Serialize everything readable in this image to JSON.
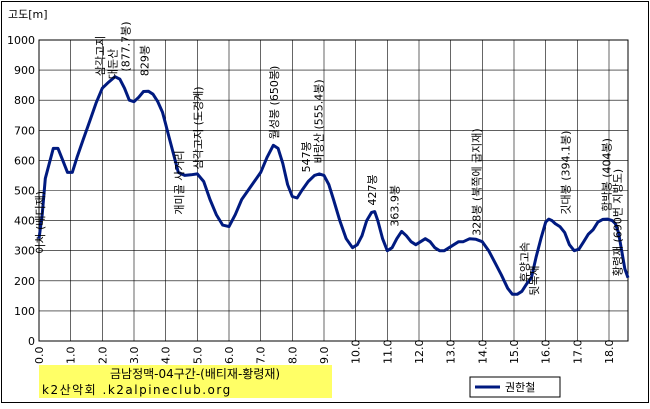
{
  "chart_data": {
    "type": "line",
    "ylabel": "고도[m]",
    "xlim": [
      0,
      18.6
    ],
    "ylim": [
      0,
      1000
    ],
    "yticks": [
      0,
      100,
      200,
      300,
      400,
      500,
      600,
      700,
      800,
      900,
      1000
    ],
    "xticks": [
      "0.0",
      "1.0",
      "2.0",
      "3.0",
      "4.0",
      "5.0",
      "6.0",
      "7.0",
      "8.0",
      "9.0",
      "10.0",
      "11.0",
      "12.0",
      "13.0",
      "14.0",
      "15.0",
      "16.0",
      "17.0",
      "18.0"
    ],
    "grid": true,
    "title_box": {
      "line1": "금남정맥-04구간-(배티재-황령재)",
      "line2": "k2산악회 .k2alpineclub.org",
      "color": "#ffff66"
    },
    "series": [
      {
        "name": "권한철",
        "color": "#001a80",
        "x": [
          0.0,
          0.1,
          0.2,
          0.3,
          0.45,
          0.6,
          0.75,
          0.9,
          1.05,
          1.2,
          1.4,
          1.6,
          1.8,
          2.0,
          2.2,
          2.4,
          2.55,
          2.7,
          2.85,
          3.0,
          3.15,
          3.3,
          3.45,
          3.6,
          3.75,
          3.9,
          4.0,
          4.1,
          4.25,
          4.4,
          4.6,
          4.8,
          5.0,
          5.2,
          5.4,
          5.6,
          5.8,
          6.0,
          6.2,
          6.4,
          6.6,
          6.8,
          7.0,
          7.2,
          7.4,
          7.55,
          7.7,
          7.85,
          8.0,
          8.15,
          8.3,
          8.5,
          8.7,
          8.85,
          9.0,
          9.15,
          9.3,
          9.5,
          9.7,
          9.9,
          10.05,
          10.2,
          10.35,
          10.5,
          10.6,
          10.7,
          10.85,
          11.0,
          11.15,
          11.3,
          11.45,
          11.6,
          11.75,
          11.9,
          12.05,
          12.2,
          12.35,
          12.5,
          12.65,
          12.8,
          12.95,
          13.1,
          13.25,
          13.4,
          13.6,
          13.8,
          14.0,
          14.2,
          14.4,
          14.6,
          14.8,
          14.95,
          15.1,
          15.25,
          15.4,
          15.55,
          15.7,
          15.85,
          16.0,
          16.1,
          16.2,
          16.3,
          16.45,
          16.6,
          16.75,
          16.9,
          17.05,
          17.2,
          17.35,
          17.5,
          17.65,
          17.8,
          17.95,
          18.1,
          18.2,
          18.3,
          18.4,
          18.5,
          18.6
        ],
        "y": [
          340,
          420,
          540,
          580,
          640,
          640,
          600,
          560,
          560,
          610,
          670,
          730,
          790,
          840,
          860,
          878,
          870,
          840,
          800,
          795,
          810,
          829,
          830,
          820,
          795,
          760,
          720,
          680,
          620,
          560,
          550,
          552,
          555,
          530,
          470,
          420,
          385,
          380,
          420,
          470,
          500,
          530,
          560,
          610,
          650,
          640,
          590,
          520,
          480,
          475,
          500,
          530,
          550,
          555,
          550,
          520,
          470,
          400,
          340,
          310,
          320,
          350,
          400,
          427,
          430,
          400,
          340,
          300,
          310,
          340,
          364,
          350,
          330,
          320,
          330,
          340,
          330,
          310,
          300,
          300,
          310,
          320,
          330,
          330,
          340,
          338,
          330,
          300,
          260,
          220,
          175,
          155,
          155,
          165,
          190,
          210,
          280,
          340,
          395,
          405,
          400,
          390,
          380,
          360,
          320,
          300,
          305,
          330,
          355,
          370,
          395,
          404,
          405,
          400,
          390,
          360,
          300,
          240,
          210
        ]
      }
    ],
    "annotations": [
      {
        "text": "이치 (배티재)",
        "x": 0.15,
        "y": 290
      },
      {
        "text": "삼각고지",
        "x": 2.05,
        "y": 880
      },
      {
        "text": "대둔산",
        "x": 2.45,
        "y": 870
      },
      {
        "text": "(877.7봉)",
        "x": 2.85,
        "y": 895
      },
      {
        "text": "829봉",
        "x": 3.45,
        "y": 880
      },
      {
        "text": "개미골 사거리",
        "x": 4.55,
        "y": 420
      },
      {
        "text": "삼각고지 (도경계)",
        "x": 5.15,
        "y": 570
      },
      {
        "text": "월성봉 (650봉)",
        "x": 7.55,
        "y": 670
      },
      {
        "text": "547봉",
        "x": 8.55,
        "y": 560
      },
      {
        "text": "바랑산 (555.4봉)",
        "x": 8.95,
        "y": 590
      },
      {
        "text": "427봉",
        "x": 10.65,
        "y": 450
      },
      {
        "text": "363.9봉",
        "x": 11.35,
        "y": 380
      },
      {
        "text": "328봉 (북쪽에 굽지재)",
        "x": 13.95,
        "y": 350
      },
      {
        "text": "휴양고속",
        "x": 15.45,
        "y": 195
      },
      {
        "text": "뒷목재",
        "x": 15.75,
        "y": 150
      },
      {
        "text": "깃대봉 (394.1봉)",
        "x": 16.75,
        "y": 420
      },
      {
        "text": "함박봉 (404봉)",
        "x": 18.05,
        "y": 430
      },
      {
        "text": "황령재 (690번 지방도)",
        "x": 18.4,
        "y": 215
      }
    ],
    "legend": {
      "position": "bottom-right",
      "label": "권한철"
    }
  }
}
